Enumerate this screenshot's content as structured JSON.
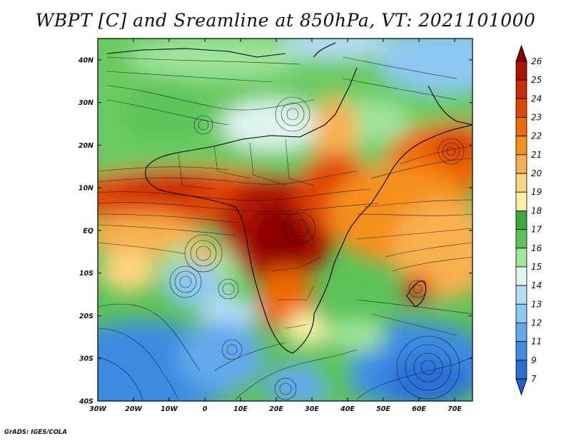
{
  "title": "WBPT [C] and Sreamline at 850hPa, VT: 2021101000",
  "credit": "GrADS: IGES/COLA",
  "axes": {
    "lon_labels": [
      "30W",
      "20W",
      "10W",
      "0",
      "10E",
      "20E",
      "30E",
      "40E",
      "50E",
      "60E",
      "70E"
    ],
    "lat_labels": [
      "40N",
      "30N",
      "20N",
      "10N",
      "EQ",
      "10S",
      "20S",
      "30S",
      "40S"
    ]
  },
  "colorbar": {
    "labels": [
      "26",
      "25",
      "24",
      "23",
      "22",
      "21",
      "20",
      "19",
      "18",
      "17",
      "16",
      "15",
      "14",
      "13",
      "12",
      "11",
      "9",
      "7"
    ],
    "colors": [
      "#8b0000",
      "#b01200",
      "#cc2a00",
      "#e04400",
      "#ee6a00",
      "#f58f1c",
      "#f8b04e",
      "#fbd57e",
      "#fcefa8",
      "#3aaa35",
      "#5cc25a",
      "#9ee49a",
      "#dff5ee",
      "#b5ddf5",
      "#8ec7f2",
      "#62a9eb",
      "#3e8ae3",
      "#2a6fd6",
      "#1f5fc8"
    ]
  },
  "map_data": {
    "variable": "Wet-bulb potential temperature (C)",
    "level_hPa": 850,
    "valid_time": "2021101000",
    "extent": {
      "lon_min": -30,
      "lon_max": 75,
      "lat_min": -40,
      "lat_max": 45
    }
  }
}
